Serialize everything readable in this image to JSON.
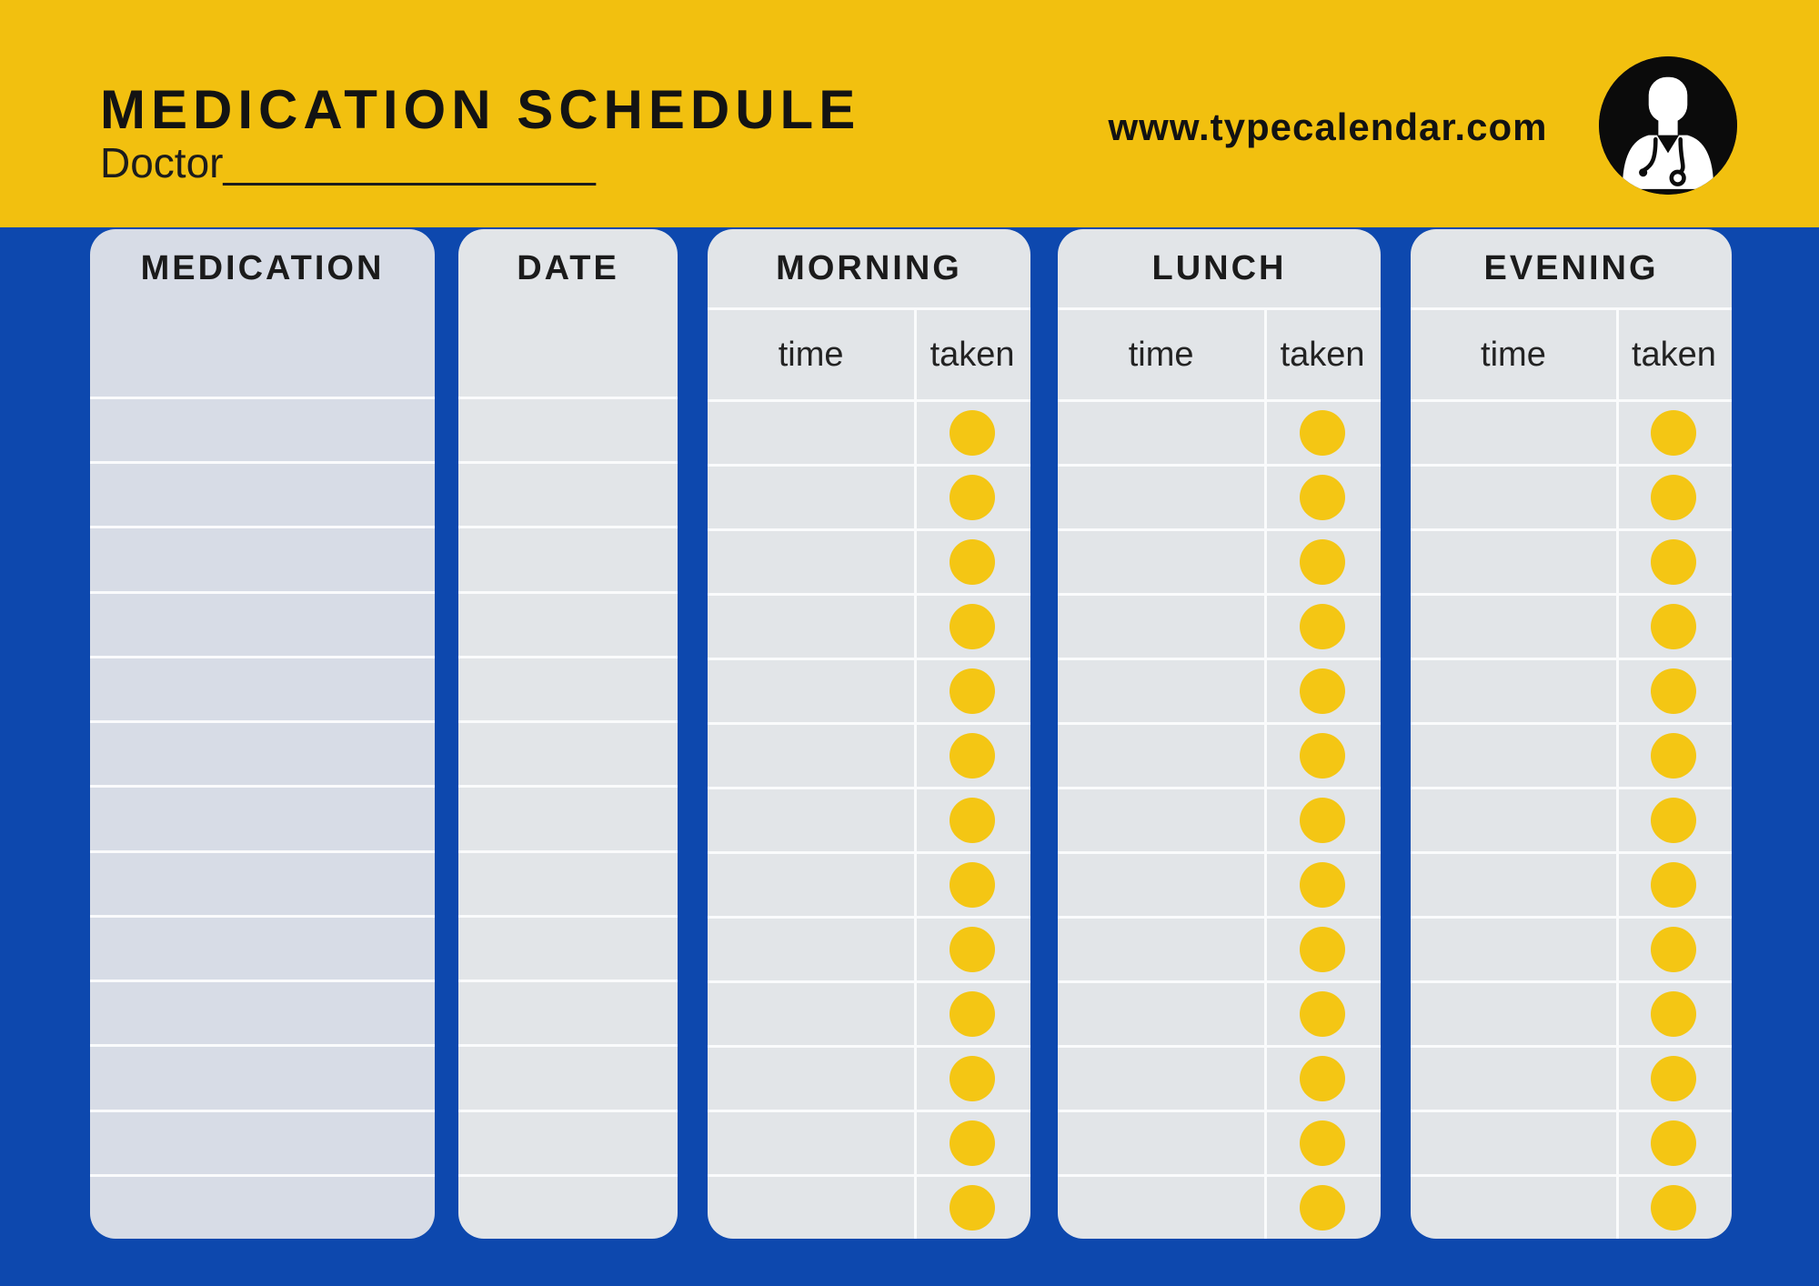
{
  "header": {
    "title": "MEDICATION SCHEDULE",
    "doctor_label": "Doctor",
    "doctor_line": "________________",
    "website": "www.typecalendar.com",
    "icon": "doctor-icon"
  },
  "table": {
    "row_count": 13,
    "rows_empty": true,
    "columns": [
      {
        "id": "medication",
        "label": "MEDICATION",
        "type": "plain"
      },
      {
        "id": "date",
        "label": "DATE",
        "type": "plain"
      },
      {
        "id": "morning",
        "label": "MORNING",
        "type": "timed",
        "time_label": "time",
        "taken_label": "taken"
      },
      {
        "id": "lunch",
        "label": "LUNCH",
        "type": "timed",
        "time_label": "time",
        "taken_label": "taken"
      },
      {
        "id": "evening",
        "label": "EVENING",
        "type": "timed",
        "time_label": "time",
        "taken_label": "taken"
      }
    ]
  },
  "colors": {
    "banner_yellow": "#F2C00F",
    "background_blue": "#0D48AE",
    "circle_yellow": "#F4C614",
    "column_fill": "#E2E5E8",
    "medication_column_fill": "#D7DCE6",
    "grid_line": "#FAFBFC",
    "text_black": "#1B1B1B"
  }
}
